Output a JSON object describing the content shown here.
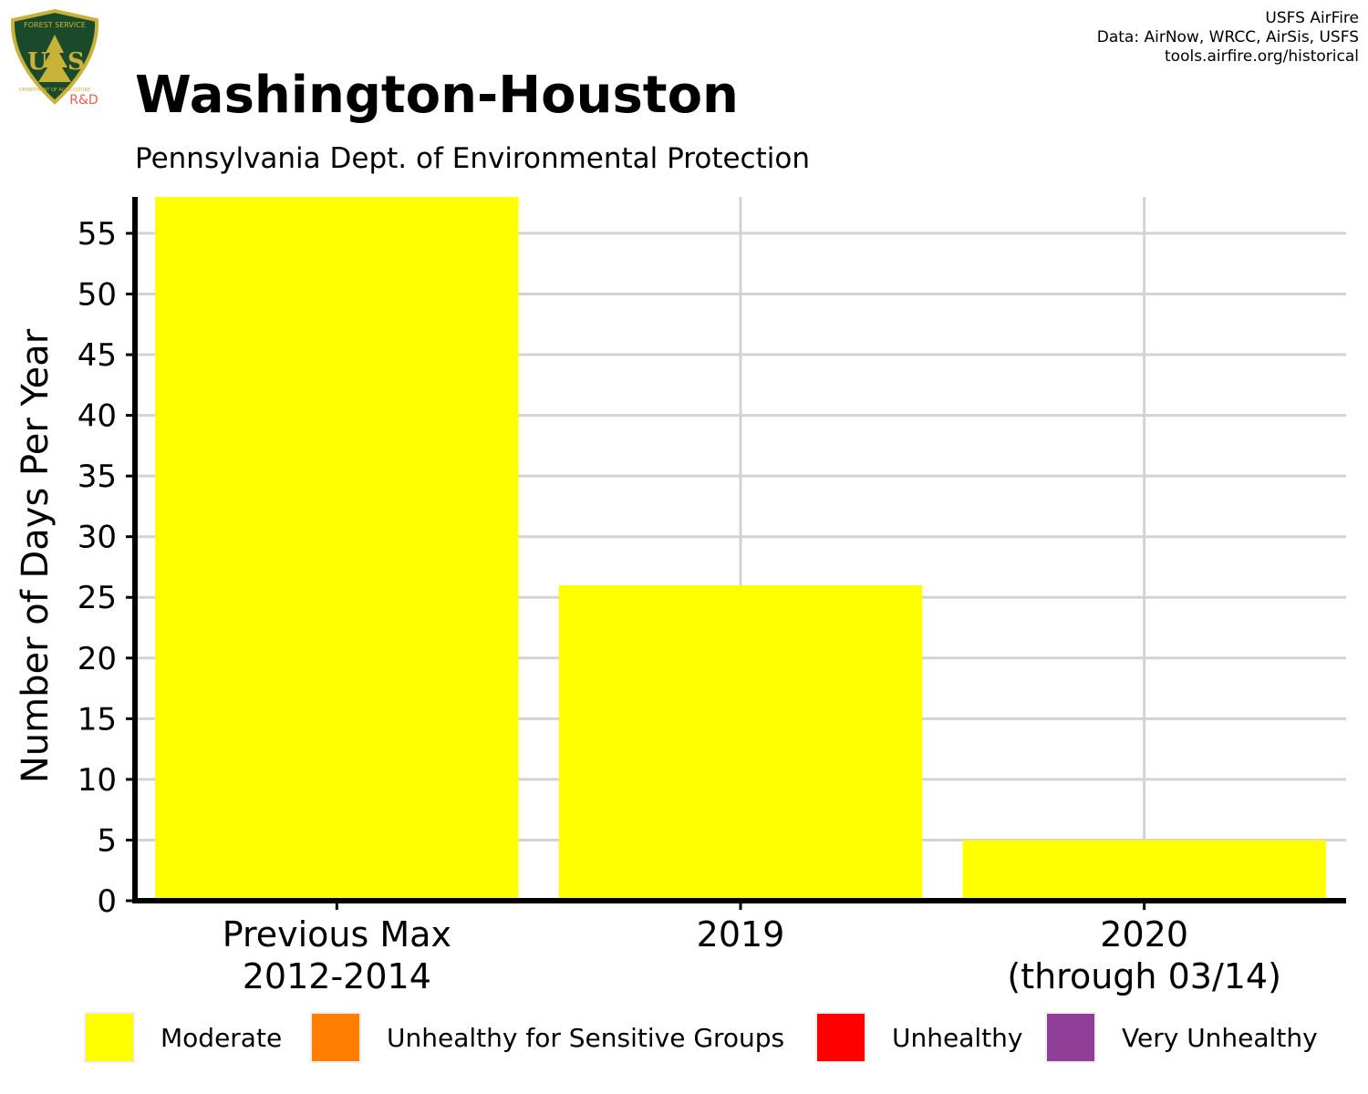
{
  "header": {
    "title": "Washington-Houston",
    "subtitle": "Pennsylvania Dept. of Environmental Protection"
  },
  "credits": [
    "USFS AirFire",
    "Data: AirNow, WRCC, AirSis, USFS",
    "tools.airfire.org/historical"
  ],
  "logo": {
    "shield_text": "U S",
    "top_text": "FOREST SERVICE",
    "bottom_text": "DEPARTMENT OF AGRICULTURE",
    "badge": "R&D",
    "colors": {
      "shield": "#1a4a2a",
      "border": "#c9b23a",
      "badge": "#e8604c"
    }
  },
  "legend": [
    {
      "label": "Moderate",
      "color": "#ffff00"
    },
    {
      "label": "Unhealthy for Sensitive Groups",
      "color": "#ff7e00"
    },
    {
      "label": "Unhealthy",
      "color": "#ff0000"
    },
    {
      "label": "Very Unhealthy",
      "color": "#8f3f97"
    }
  ],
  "chart_data": {
    "type": "bar",
    "categories": [
      [
        "Previous Max",
        "2012-2014"
      ],
      [
        "2019"
      ],
      [
        "2020",
        "(through 03/14)"
      ]
    ],
    "series": [
      {
        "name": "Moderate",
        "values": [
          58,
          26,
          5
        ],
        "color": "#ffff00"
      }
    ],
    "ylabel": "Number of Days Per Year",
    "xlabel": "",
    "ylim": [
      0,
      58
    ],
    "yticks": [
      0,
      5,
      10,
      15,
      20,
      25,
      30,
      35,
      40,
      45,
      50,
      55
    ],
    "grid": true
  }
}
